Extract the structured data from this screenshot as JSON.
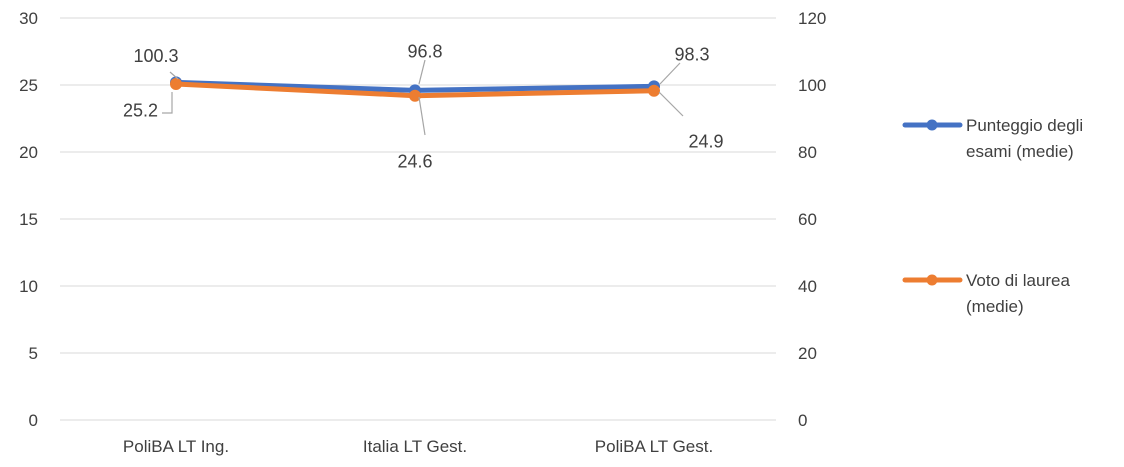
{
  "chart_data": {
    "type": "line",
    "title": "",
    "categories": [
      "PoliBA LT Ing.",
      "Italia LT Gest.",
      "PoliBA LT Gest."
    ],
    "y_left": {
      "ticks": [
        "0",
        "5",
        "10",
        "15",
        "20",
        "25",
        "30"
      ],
      "ylim": [
        0,
        30
      ]
    },
    "y_right": {
      "ticks": [
        "0",
        "20",
        "40",
        "60",
        "80",
        "100",
        "120"
      ],
      "ylim": [
        0,
        120
      ]
    },
    "grid": true,
    "legend_position": "right",
    "series": [
      {
        "name": "Punteggio degli esami (medie)",
        "axis": "left",
        "color": "#4472C4",
        "values": [
          25.2,
          24.6,
          24.9
        ],
        "labels": [
          "25.2",
          "24.6",
          "24.9"
        ]
      },
      {
        "name": "Voto di laurea (medie)",
        "axis": "right",
        "color": "#ED7D31",
        "values": [
          100.3,
          96.8,
          98.3
        ],
        "labels": [
          "100.3",
          "96.8",
          "98.3"
        ]
      }
    ],
    "legend": [
      {
        "lines": [
          "Punteggio degli",
          "esami (medie)"
        ]
      },
      {
        "lines": [
          "Voto di laurea",
          "(medie)"
        ]
      }
    ]
  }
}
